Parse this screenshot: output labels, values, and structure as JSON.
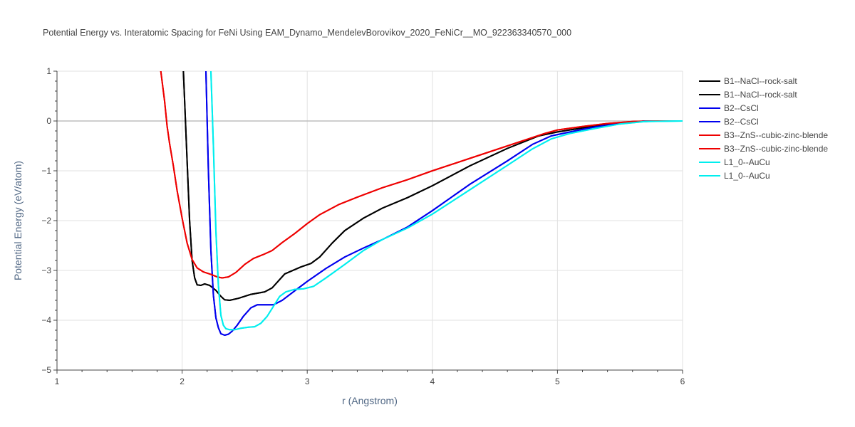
{
  "chart_data": {
    "type": "line",
    "title": "Potential Energy vs. Interatomic Spacing for FeNi Using EAM_Dynamo_MendelevBorovikov_2020_FeNiCr__MO_922363340570_000",
    "xlabel": "r (Angstrom)",
    "ylabel": "Potential Energy (eV/atom)",
    "xlim": [
      1,
      6
    ],
    "ylim": [
      -5,
      1
    ],
    "xticks": [
      1,
      2,
      3,
      4,
      5,
      6
    ],
    "yticks": [
      1,
      0,
      -1,
      -2,
      -3,
      -4,
      -5
    ],
    "xtick_labels": [
      "1",
      "2",
      "3",
      "4",
      "5",
      "6"
    ],
    "ytick_labels": [
      "1",
      "0",
      "−1",
      "−2",
      "−3",
      "−4",
      "−5"
    ],
    "grid": true,
    "legend_position": "right",
    "series": [
      {
        "name": "B1--NaCl--rock-salt",
        "color": "#000000",
        "x": [
          2.01,
          2.04,
          2.06,
          2.08,
          2.1,
          2.12,
          2.15,
          2.18,
          2.22,
          2.27,
          2.31,
          2.34,
          2.38,
          2.45,
          2.55,
          2.66,
          2.72,
          2.82,
          2.95,
          3.03,
          3.1,
          3.2,
          3.3,
          3.45,
          3.6,
          3.8,
          4.0,
          4.3,
          4.6,
          4.85,
          5.0,
          5.2,
          5.4,
          5.6,
          5.8,
          6.0
        ],
        "y": [
          1.0,
          -0.8,
          -2.0,
          -2.8,
          -3.15,
          -3.29,
          -3.3,
          -3.27,
          -3.3,
          -3.4,
          -3.52,
          -3.59,
          -3.6,
          -3.56,
          -3.48,
          -3.43,
          -3.35,
          -3.07,
          -2.93,
          -2.86,
          -2.73,
          -2.45,
          -2.2,
          -1.95,
          -1.75,
          -1.54,
          -1.3,
          -0.9,
          -0.55,
          -0.3,
          -0.22,
          -0.14,
          -0.07,
          -0.02,
          0.0,
          0.0
        ]
      },
      {
        "name": "B1--NaCl--rock-salt",
        "color": "#000000",
        "x": [
          2.01,
          2.04,
          2.06,
          2.08,
          2.1,
          2.12,
          2.15,
          2.18,
          2.22,
          2.27,
          2.31,
          2.34,
          2.38,
          2.45,
          2.55,
          2.66,
          2.72,
          2.82,
          2.95,
          3.03,
          3.1,
          3.2,
          3.3,
          3.45,
          3.6,
          3.8,
          4.0,
          4.3,
          4.6,
          4.85,
          5.0,
          5.2,
          5.4,
          5.6,
          5.8,
          6.0
        ],
        "y": [
          1.0,
          -0.8,
          -2.0,
          -2.8,
          -3.15,
          -3.29,
          -3.3,
          -3.27,
          -3.3,
          -3.4,
          -3.52,
          -3.59,
          -3.6,
          -3.56,
          -3.48,
          -3.43,
          -3.35,
          -3.07,
          -2.93,
          -2.86,
          -2.73,
          -2.45,
          -2.2,
          -1.95,
          -1.75,
          -1.54,
          -1.3,
          -0.9,
          -0.55,
          -0.3,
          -0.22,
          -0.14,
          -0.07,
          -0.02,
          0.0,
          0.0
        ]
      },
      {
        "name": "B2--CsCl",
        "color": "#0000ee",
        "x": [
          2.19,
          2.21,
          2.23,
          2.25,
          2.27,
          2.29,
          2.31,
          2.34,
          2.37,
          2.4,
          2.44,
          2.49,
          2.55,
          2.6,
          2.66,
          2.73,
          2.8,
          2.9,
          3.0,
          3.15,
          3.3,
          3.45,
          3.6,
          3.8,
          4.0,
          4.3,
          4.6,
          4.8,
          4.95,
          5.1,
          5.3,
          5.5,
          5.7,
          6.0
        ],
        "y": [
          1.0,
          -1.0,
          -2.6,
          -3.5,
          -3.95,
          -4.15,
          -4.27,
          -4.3,
          -4.28,
          -4.22,
          -4.1,
          -3.92,
          -3.75,
          -3.69,
          -3.69,
          -3.69,
          -3.6,
          -3.41,
          -3.22,
          -2.96,
          -2.73,
          -2.55,
          -2.38,
          -2.13,
          -1.8,
          -1.27,
          -0.8,
          -0.47,
          -0.3,
          -0.22,
          -0.12,
          -0.05,
          0.0,
          0.0
        ]
      },
      {
        "name": "B2--CsCl",
        "color": "#0000ee",
        "x": [
          2.19,
          2.21,
          2.23,
          2.25,
          2.27,
          2.29,
          2.31,
          2.34,
          2.37,
          2.4,
          2.44,
          2.49,
          2.55,
          2.6,
          2.66,
          2.73,
          2.8,
          2.9,
          3.0,
          3.15,
          3.3,
          3.45,
          3.6,
          3.8,
          4.0,
          4.3,
          4.6,
          4.8,
          4.95,
          5.1,
          5.3,
          5.5,
          5.7,
          6.0
        ],
        "y": [
          1.0,
          -1.0,
          -2.6,
          -3.5,
          -3.95,
          -4.15,
          -4.27,
          -4.3,
          -4.28,
          -4.22,
          -4.1,
          -3.92,
          -3.75,
          -3.69,
          -3.69,
          -3.69,
          -3.6,
          -3.41,
          -3.22,
          -2.96,
          -2.73,
          -2.55,
          -2.38,
          -2.13,
          -1.8,
          -1.27,
          -0.8,
          -0.47,
          -0.3,
          -0.22,
          -0.12,
          -0.05,
          0.0,
          0.0
        ]
      },
      {
        "name": "B3--ZnS--cubic-zinc-blende",
        "color": "#ee0000",
        "x": [
          1.83,
          1.86,
          1.88,
          1.9,
          1.93,
          1.96,
          2.0,
          2.04,
          2.08,
          2.12,
          2.17,
          2.23,
          2.28,
          2.32,
          2.37,
          2.43,
          2.5,
          2.57,
          2.65,
          2.72,
          2.8,
          2.9,
          3.0,
          3.1,
          3.25,
          3.4,
          3.6,
          3.8,
          4.0,
          4.3,
          4.6,
          4.9,
          5.0,
          5.2,
          5.4,
          5.6,
          5.8,
          6.0
        ],
        "y": [
          1.0,
          0.4,
          -0.1,
          -0.45,
          -0.9,
          -1.4,
          -1.95,
          -2.45,
          -2.78,
          -2.95,
          -3.03,
          -3.08,
          -3.13,
          -3.15,
          -3.13,
          -3.04,
          -2.88,
          -2.76,
          -2.68,
          -2.6,
          -2.44,
          -2.26,
          -2.06,
          -1.88,
          -1.68,
          -1.53,
          -1.34,
          -1.18,
          -1.0,
          -0.75,
          -0.5,
          -0.25,
          -0.18,
          -0.11,
          -0.05,
          -0.01,
          0.0,
          0.0
        ]
      },
      {
        "name": "B3--ZnS--cubic-zinc-blende",
        "color": "#ee0000",
        "x": [
          1.83,
          1.86,
          1.88,
          1.9,
          1.93,
          1.96,
          2.0,
          2.04,
          2.08,
          2.12,
          2.17,
          2.23,
          2.28,
          2.32,
          2.37,
          2.43,
          2.5,
          2.57,
          2.65,
          2.72,
          2.8,
          2.9,
          3.0,
          3.1,
          3.25,
          3.4,
          3.6,
          3.8,
          4.0,
          4.3,
          4.6,
          4.9,
          5.0,
          5.2,
          5.4,
          5.6,
          5.8,
          6.0
        ],
        "y": [
          1.0,
          0.4,
          -0.1,
          -0.45,
          -0.9,
          -1.4,
          -1.95,
          -2.45,
          -2.78,
          -2.95,
          -3.03,
          -3.08,
          -3.13,
          -3.15,
          -3.13,
          -3.04,
          -2.88,
          -2.76,
          -2.68,
          -2.6,
          -2.44,
          -2.26,
          -2.06,
          -1.88,
          -1.68,
          -1.53,
          -1.34,
          -1.18,
          -1.0,
          -0.75,
          -0.5,
          -0.25,
          -0.18,
          -0.11,
          -0.05,
          -0.01,
          0.0,
          0.0
        ]
      },
      {
        "name": "L1_0--AuCu",
        "color": "#00eeee",
        "x": [
          2.23,
          2.25,
          2.27,
          2.29,
          2.31,
          2.33,
          2.35,
          2.38,
          2.42,
          2.47,
          2.53,
          2.58,
          2.63,
          2.68,
          2.73,
          2.78,
          2.83,
          2.9,
          2.97,
          3.05,
          3.15,
          3.3,
          3.45,
          3.6,
          3.8,
          4.0,
          4.3,
          4.6,
          4.8,
          4.95,
          5.1,
          5.3,
          5.5,
          5.7,
          6.0
        ],
        "y": [
          1.0,
          -0.5,
          -2.2,
          -3.3,
          -3.9,
          -4.1,
          -4.17,
          -4.19,
          -4.19,
          -4.16,
          -4.14,
          -4.13,
          -4.06,
          -3.92,
          -3.72,
          -3.52,
          -3.43,
          -3.38,
          -3.37,
          -3.32,
          -3.15,
          -2.88,
          -2.6,
          -2.38,
          -2.15,
          -1.87,
          -1.38,
          -0.89,
          -0.56,
          -0.36,
          -0.25,
          -0.15,
          -0.06,
          -0.01,
          0.0
        ]
      },
      {
        "name": "L1_0--AuCu",
        "color": "#00eeee",
        "x": [
          2.23,
          2.25,
          2.27,
          2.29,
          2.31,
          2.33,
          2.35,
          2.38,
          2.42,
          2.47,
          2.53,
          2.58,
          2.63,
          2.68,
          2.73,
          2.78,
          2.83,
          2.9,
          2.97,
          3.05,
          3.15,
          3.3,
          3.45,
          3.6,
          3.8,
          4.0,
          4.3,
          4.6,
          4.8,
          4.95,
          5.1,
          5.3,
          5.5,
          5.7,
          6.0
        ],
        "y": [
          1.0,
          -0.5,
          -2.2,
          -3.3,
          -3.9,
          -4.1,
          -4.17,
          -4.19,
          -4.19,
          -4.16,
          -4.14,
          -4.13,
          -4.06,
          -3.92,
          -3.72,
          -3.52,
          -3.43,
          -3.38,
          -3.37,
          -3.32,
          -3.15,
          -2.88,
          -2.6,
          -2.38,
          -2.15,
          -1.87,
          -1.38,
          -0.89,
          -0.56,
          -0.36,
          -0.25,
          -0.15,
          -0.06,
          -0.01,
          0.0
        ]
      }
    ]
  }
}
